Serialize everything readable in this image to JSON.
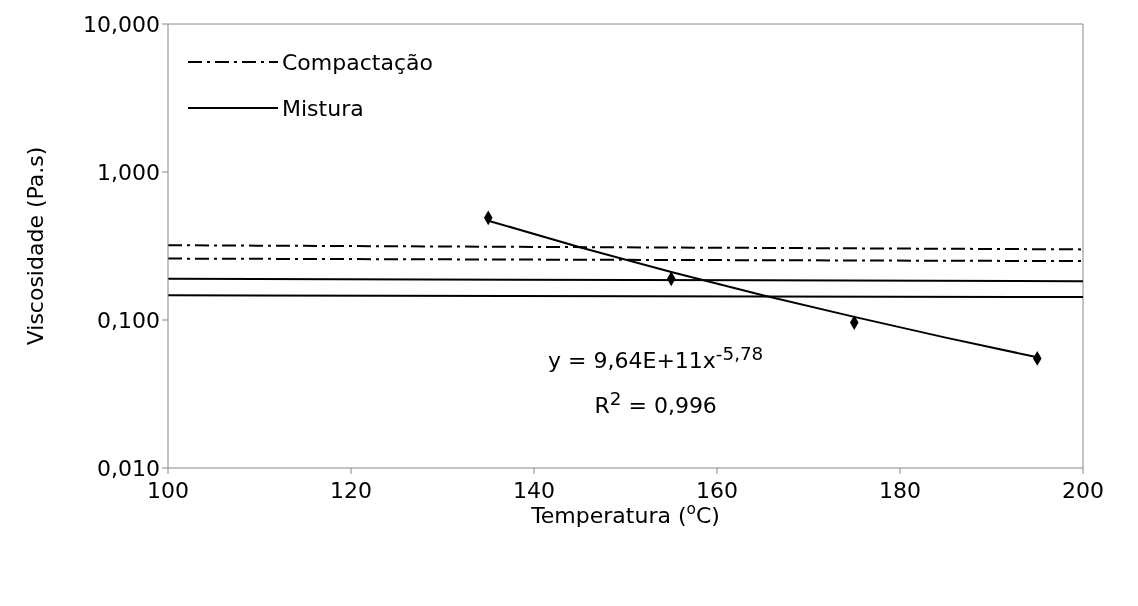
{
  "chart_data": {
    "type": "scatter",
    "xlabel": "Temperatura ($^{o}$C)",
    "ylabel": "Viscosidade (Pa.s)",
    "xlim": [
      100,
      200
    ],
    "xticks": [
      100,
      120,
      140,
      160,
      180,
      200
    ],
    "ylim": [
      0.01,
      10
    ],
    "yticks": [
      {
        "value": 0.01,
        "label": "0,010"
      },
      {
        "value": 0.1,
        "label": "0,100"
      },
      {
        "value": 1,
        "label": "1,000"
      },
      {
        "value": 10,
        "label": "10,000"
      }
    ],
    "log": "y",
    "grid": false,
    "legend": "top left",
    "marker": "diamond",
    "series": [
      {
        "color": "#000000",
        "x": [
          135,
          155,
          175,
          195
        ],
        "values": [
          0.49,
          0.19,
          0.096,
          0.055
        ]
      },
      {
        "type": "line",
        "color": "#000000",
        "x": [
          135,
          145,
          155,
          165,
          175,
          185,
          195
        ],
        "values": [
          0.469,
          0.31,
          0.211,
          0.147,
          0.105,
          0.076,
          0.056
        ],
        "marker": "none",
        "line_style": "solid"
      },
      {
        "type": "line",
        "name": "Compactação",
        "color": "#000000",
        "x": [
          100,
          200
        ],
        "values": [
          0.32,
          0.3
        ],
        "marker": "none",
        "line_style": "dashed"
      },
      {
        "type": "line",
        "color": "#000000",
        "x": [
          100,
          200
        ],
        "values": [
          0.26,
          0.25
        ],
        "marker": "none",
        "line_style": "dashed"
      },
      {
        "type": "line",
        "name": "Mistura",
        "color": "#000000",
        "x": [
          100,
          200
        ],
        "values": [
          0.19,
          0.183
        ],
        "marker": "none",
        "line_style": "solid"
      },
      {
        "type": "line",
        "color": "#000000",
        "x": [
          100,
          200
        ],
        "values": [
          0.147,
          0.143
        ],
        "marker": "none",
        "line_style": "solid"
      }
    ],
    "annotations": [
      "y = 9,64E+11x$^{-5,78}$",
      "R$^{2}$ = 0,996"
    ]
  }
}
